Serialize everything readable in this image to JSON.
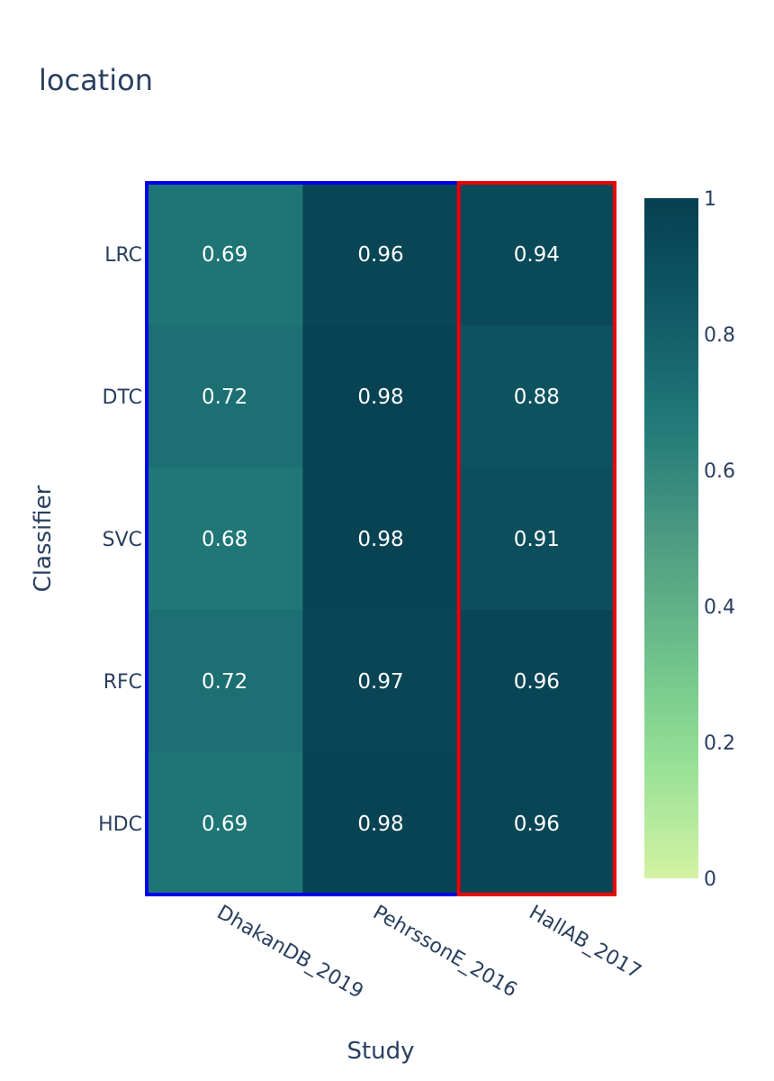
{
  "chart_data": {
    "type": "heatmap",
    "title": "location",
    "xlabel": "Study",
    "ylabel": "Classifier",
    "x": [
      "DhakanDB_2019",
      "PehrssonE_2016",
      "HallAB_2017"
    ],
    "y": [
      "LRC",
      "DTC",
      "SVC",
      "RFC",
      "HDC"
    ],
    "z": [
      [
        0.69,
        0.96,
        0.94
      ],
      [
        0.72,
        0.98,
        0.88
      ],
      [
        0.68,
        0.98,
        0.91
      ],
      [
        0.72,
        0.97,
        0.96
      ],
      [
        0.69,
        0.98,
        0.96
      ]
    ],
    "zlim": [
      0,
      1
    ],
    "colorscale": [
      "#d3f2a3",
      "#97e196",
      "#6cc08b",
      "#4c9b82",
      "#217a79",
      "#105965",
      "#074050"
    ],
    "colorbar_ticks": [
      "0",
      "0.2",
      "0.4",
      "0.6",
      "0.8",
      "1"
    ],
    "colorbar_tick_values": [
      0,
      0.2,
      0.4,
      0.6,
      0.8,
      1
    ],
    "highlight_groups": [
      {
        "columns": [
          "DhakanDB_2019",
          "PehrssonE_2016"
        ],
        "color": "#0000ee"
      },
      {
        "columns": [
          "HallAB_2017"
        ],
        "color": "#ee0000"
      }
    ],
    "grid": false
  }
}
